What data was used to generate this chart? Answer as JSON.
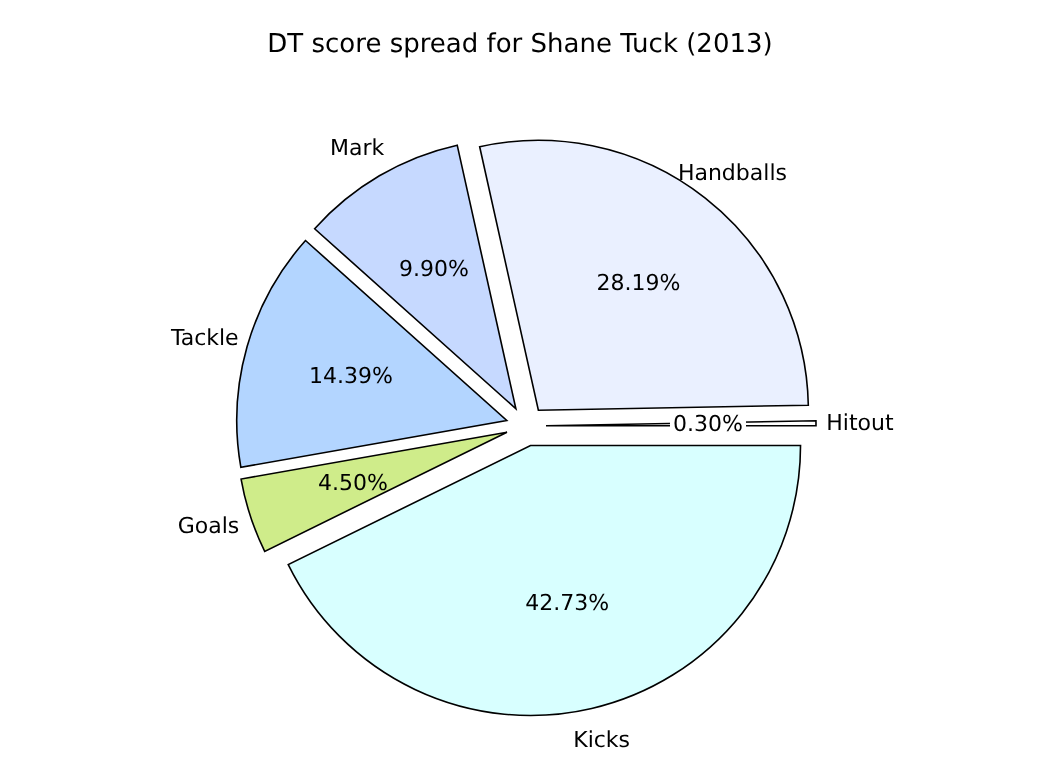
{
  "chart_data": {
    "type": "pie",
    "title": "DT score spread for Shane Tuck (2013)",
    "categories": [
      "Hitout",
      "Handballs",
      "Mark",
      "Tackle",
      "Goals",
      "Kicks"
    ],
    "values": [
      0.3,
      28.19,
      9.9,
      14.39,
      4.5,
      42.73
    ],
    "value_labels": [
      "0.30%",
      "28.19%",
      "9.90%",
      "14.39%",
      "4.50%",
      "42.73%"
    ],
    "colors": [
      "#ffffff",
      "#eaf0ff",
      "#c6d9ff",
      "#b3d5ff",
      "#cfec8a",
      "#d8ffff"
    ]
  }
}
